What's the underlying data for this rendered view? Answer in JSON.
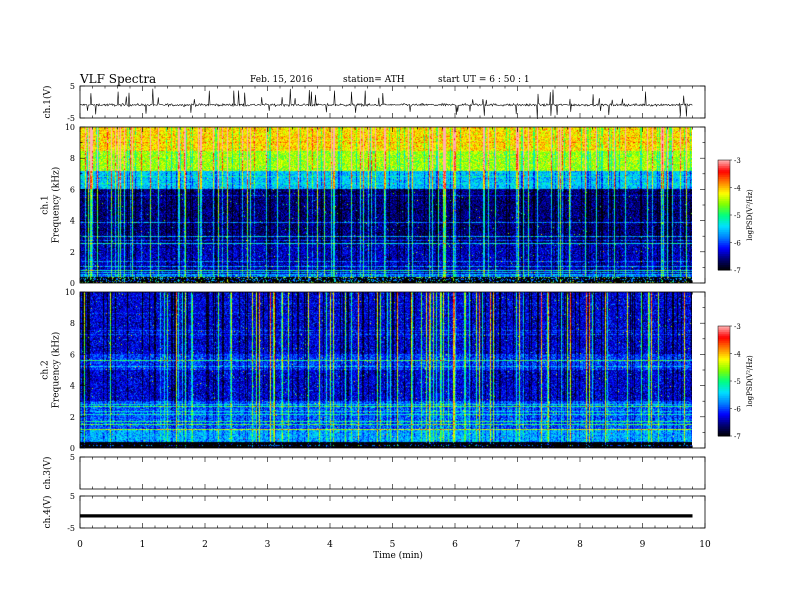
{
  "header": {
    "title": "VLF  Spectra",
    "date": "Feb. 15, 2016",
    "station": "station= ATH",
    "start_ut": "start  UT  =   6  : 50 : 1"
  },
  "chart_data": [
    {
      "id": "ch1-waveform",
      "type": "line",
      "ylabel": "ch.1(V)",
      "ylim": [
        -5,
        5
      ],
      "yticks": [
        "5",
        "-5"
      ],
      "xlim": [
        0,
        10
      ],
      "description": "noisy waveform around -1 V with frequent spikes",
      "baseline": -0.9,
      "x_end": 9.8
    },
    {
      "id": "ch1-spectrogram",
      "type": "heatmap",
      "ylabel": "ch.1\nFrequency  (kHz)",
      "ylabel_lines": [
        "ch.1",
        "Frequency  (kHz)"
      ],
      "ylim": [
        0,
        10
      ],
      "yticks": [
        "0",
        "2",
        "4",
        "6",
        "8",
        "10"
      ],
      "xlim": [
        0,
        10
      ],
      "x_end": 9.8,
      "colorbar": {
        "label": "logPSD(V²/Hz)",
        "range": [
          -7,
          -3
        ],
        "ticks": [
          "-3",
          "-4",
          "-5",
          "-6",
          "-7"
        ]
      },
      "level_profile": [
        {
          "f_max": 0.5,
          "level": -5.8
        },
        {
          "f_max": 2.5,
          "level": -6.4
        },
        {
          "f_max": 6.0,
          "level": -6.6
        },
        {
          "f_max": 7.2,
          "level": -5.5
        },
        {
          "f_max": 8.5,
          "level": -4.5
        },
        {
          "f_max": 10.0,
          "level": -4.1
        }
      ]
    },
    {
      "id": "ch2-spectrogram",
      "type": "heatmap",
      "ylabel": "ch.2\nFrequency  (kHz)",
      "ylabel_lines": [
        "ch.2",
        "Frequency  (kHz)"
      ],
      "ylim": [
        0,
        10
      ],
      "yticks": [
        "0",
        "2",
        "4",
        "6",
        "8",
        "10"
      ],
      "xlim": [
        0,
        10
      ],
      "x_end": 9.8,
      "colorbar": {
        "label": "logPSD(V²/Hz)",
        "range": [
          -7,
          -3
        ],
        "ticks": [
          "-3",
          "-4",
          "-5",
          "-6",
          "-7"
        ]
      },
      "level_profile": [
        {
          "f_max": 0.4,
          "level": -6.9
        },
        {
          "f_max": 1.2,
          "level": -5.6
        },
        {
          "f_max": 3.0,
          "level": -5.9
        },
        {
          "f_max": 5.0,
          "level": -6.3
        },
        {
          "f_max": 6.0,
          "level": -6.0
        },
        {
          "f_max": 10.0,
          "level": -6.3
        }
      ]
    },
    {
      "id": "ch3-waveform",
      "type": "line",
      "ylabel": "ch.3(V)",
      "ylim": [
        -5,
        5
      ],
      "yticks": [
        "5"
      ],
      "xlim": [
        0,
        10
      ],
      "description": "empty channel"
    },
    {
      "id": "ch4-waveform",
      "type": "line",
      "ylabel": "ch.4(V)",
      "ylim": [
        -5,
        5
      ],
      "yticks": [
        "5",
        "-5"
      ],
      "xlim": [
        0,
        10
      ],
      "baseline": -1.2,
      "x_end": 9.8,
      "description": "flat thick trace near -1 V"
    }
  ],
  "xaxis": {
    "label": "Time  (min)",
    "ticks": [
      "0",
      "1",
      "2",
      "3",
      "4",
      "5",
      "6",
      "7",
      "8",
      "9",
      "10"
    ]
  },
  "colors": {
    "colormap": [
      "#000000",
      "#00006e",
      "#0000ff",
      "#0080ff",
      "#00e0ff",
      "#00ff80",
      "#80ff00",
      "#ffff00",
      "#ff8000",
      "#ff0000",
      "#ffb0b0"
    ]
  }
}
